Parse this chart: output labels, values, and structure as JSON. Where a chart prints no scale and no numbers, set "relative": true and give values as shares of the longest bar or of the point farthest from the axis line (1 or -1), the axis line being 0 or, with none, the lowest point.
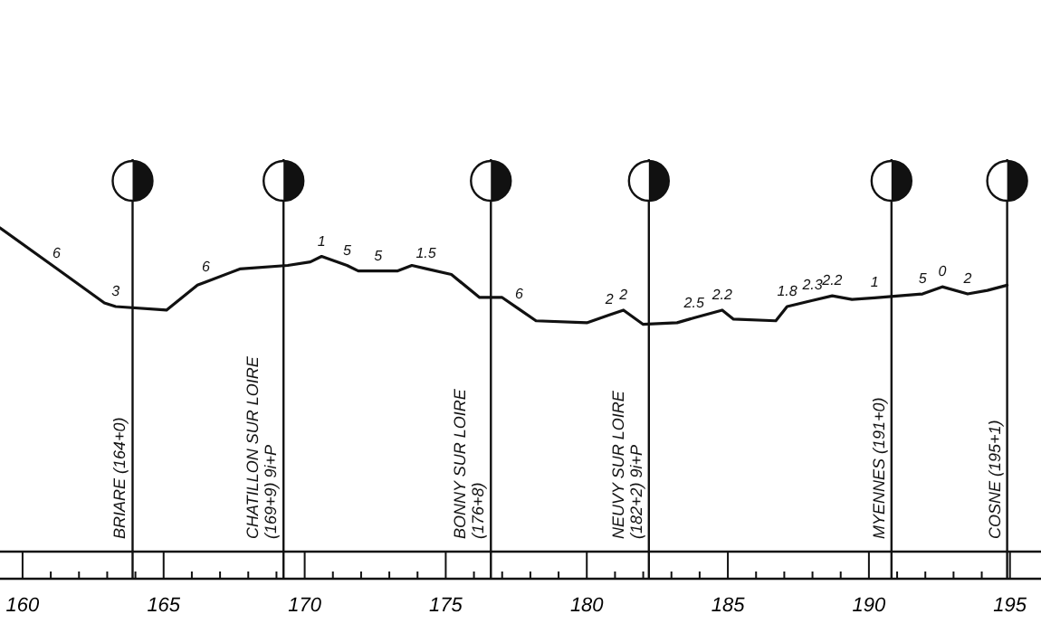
{
  "chart_data": {
    "type": "line",
    "relative": true,
    "grid": false,
    "marker": "none",
    "line_style": "solid",
    "xlim": [
      159.2,
      196.1
    ],
    "xticks": [
      160,
      {
        "value": 161,
        "label": null
      },
      {
        "value": 162,
        "label": null
      },
      {
        "value": 163,
        "label": null
      },
      {
        "value": 164,
        "label": null
      },
      165,
      {
        "value": 166,
        "label": null
      },
      {
        "value": 167,
        "label": null
      },
      {
        "value": 168,
        "label": null
      },
      {
        "value": 169,
        "label": null
      },
      170,
      {
        "value": 171,
        "label": null
      },
      {
        "value": 172,
        "label": null
      },
      {
        "value": 173,
        "label": null
      },
      {
        "value": 174,
        "label": null
      },
      175,
      {
        "value": 176,
        "label": null
      },
      {
        "value": 177,
        "label": null
      },
      {
        "value": 178,
        "label": null
      },
      {
        "value": 179,
        "label": null
      },
      180,
      {
        "value": 181,
        "label": null
      },
      {
        "value": 182,
        "label": null
      },
      {
        "value": 183,
        "label": null
      },
      {
        "value": 184,
        "label": null
      },
      185,
      {
        "value": 186,
        "label": null
      },
      {
        "value": 187,
        "label": null
      },
      {
        "value": 188,
        "label": null
      },
      {
        "value": 189,
        "label": null
      },
      190,
      {
        "value": 191,
        "label": null
      },
      {
        "value": 192,
        "label": null
      },
      {
        "value": 193,
        "label": null
      },
      {
        "value": 194,
        "label": null
      },
      195
    ],
    "series": [
      {
        "color": "#111111",
        "x": [
          159.2,
          161.2,
          162.9,
          163.3,
          165.1,
          166.2,
          166.5,
          167.7,
          169.4,
          170.2,
          170.6,
          171.5,
          171.9,
          172.6,
          173.3,
          173.8,
          174.3,
          175.2,
          176.2,
          177.0,
          177.6,
          178.2,
          180.0,
          180.8,
          181.3,
          182.0,
          183.2,
          183.8,
          184.8,
          185.2,
          186.7,
          187.1,
          188.0,
          188.7,
          189.4,
          190.2,
          191.9,
          192.6,
          193.5,
          194.2,
          194.9
        ],
        "values": [
          1.0,
          0.875,
          0.768,
          0.757,
          0.746,
          0.823,
          0.833,
          0.873,
          0.884,
          0.895,
          0.912,
          0.884,
          0.867,
          0.867,
          0.867,
          0.884,
          0.874,
          0.856,
          0.785,
          0.785,
          0.749,
          0.713,
          0.707,
          0.731,
          0.746,
          0.702,
          0.707,
          0.722,
          0.746,
          0.718,
          0.713,
          0.757,
          0.776,
          0.79,
          0.779,
          0.784,
          0.796,
          0.818,
          0.796,
          0.807,
          0.823
        ]
      }
    ],
    "ref_lines": [
      {
        "axis": "x",
        "value": 163.9,
        "label": "BRIARE (164+0)"
      },
      {
        "axis": "x",
        "value": 169.25,
        "label": "CHATILLON SUR LOIRE (169+9) 9i+P"
      },
      {
        "axis": "x",
        "value": 176.6,
        "label": "BONNY SUR LOIRE (176+8)"
      },
      {
        "axis": "x",
        "value": 182.2,
        "label": "NEUVY SUR LOIRE (182+2) 9i+P"
      },
      {
        "axis": "x",
        "value": 190.8,
        "label": "MYENNES (191+0)"
      },
      {
        "axis": "x",
        "value": 194.9,
        "label": "COSNE (195+1)"
      }
    ],
    "annotations": [
      {
        "text": "6",
        "x": 161.2,
        "y": 0.875
      },
      {
        "text": "3",
        "x": 163.3,
        "y": 0.757
      },
      {
        "text": "6",
        "x": 166.5,
        "y": 0.833
      },
      {
        "text": "1",
        "x": 170.6,
        "y": 0.912
      },
      {
        "text": "5",
        "x": 171.5,
        "y": 0.884
      },
      {
        "text": "5",
        "x": 172.6,
        "y": 0.867
      },
      {
        "text": "1.5",
        "x": 174.3,
        "y": 0.874
      },
      {
        "text": "6",
        "x": 177.6,
        "y": 0.749
      },
      {
        "text": "2",
        "x": 180.8,
        "y": 0.731
      },
      {
        "text": "2",
        "x": 181.3,
        "y": 0.746
      },
      {
        "text": "2.5",
        "x": 183.8,
        "y": 0.722
      },
      {
        "text": "2.2",
        "x": 184.8,
        "y": 0.746
      },
      {
        "text": "1.8",
        "x": 187.1,
        "y": 0.757
      },
      {
        "text": "2.3",
        "x": 188.0,
        "y": 0.776
      },
      {
        "text": "2.2",
        "x": 188.7,
        "y": 0.79
      },
      {
        "text": "1",
        "x": 190.2,
        "y": 0.784
      },
      {
        "text": "5",
        "x": 191.9,
        "y": 0.796
      },
      {
        "text": "0",
        "x": 192.6,
        "y": 0.818
      },
      {
        "text": "2",
        "x": 193.5,
        "y": 0.796
      }
    ]
  }
}
